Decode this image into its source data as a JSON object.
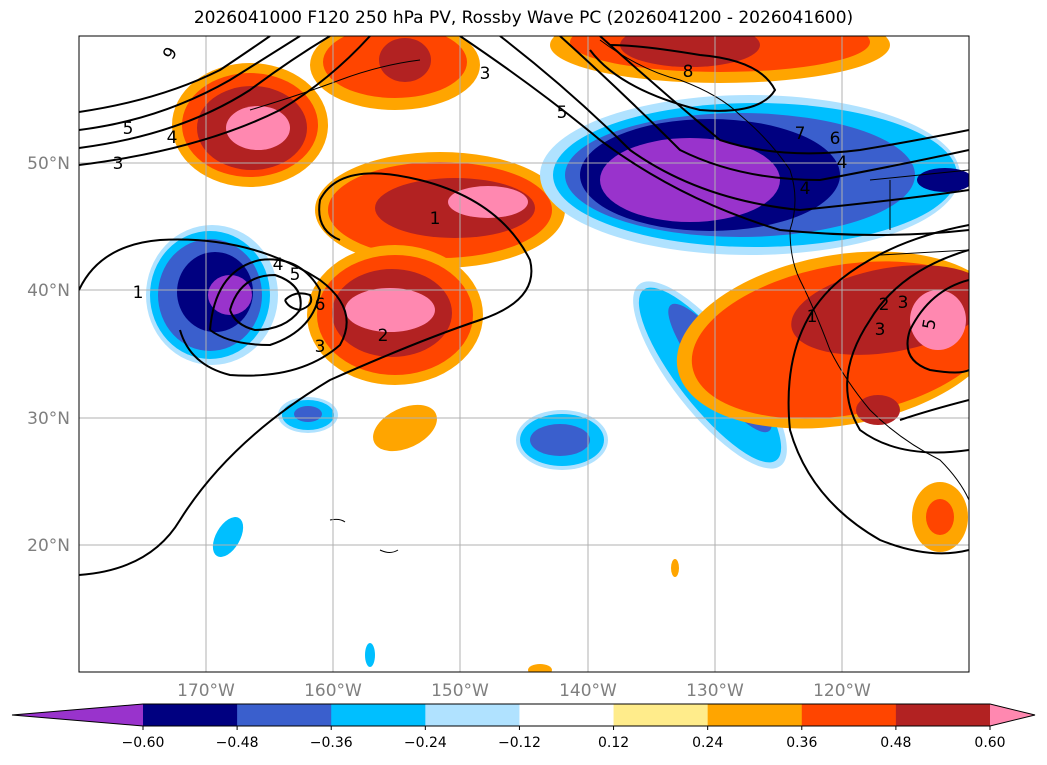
{
  "title": "2026041000 F120 250 hPa PV, Rossby Wave PC (2026041200 - 2026041600)",
  "lat_labels": [
    "50°N",
    "40°N",
    "30°N",
    "20°N"
  ],
  "lon_labels": [
    "170°W",
    "160°W",
    "150°W",
    "140°W",
    "130°W",
    "120°W"
  ],
  "contour_labels": [
    "9",
    "5",
    "4",
    "3",
    "3",
    "5",
    "1",
    "7",
    "6",
    "4",
    "4",
    "8",
    "1",
    "4",
    "5",
    "6",
    "3",
    "2",
    "1",
    "3",
    "2",
    "3",
    "5"
  ],
  "colorbar": {
    "tick_labels": [
      "−0.60",
      "−0.48",
      "−0.36",
      "−0.24",
      "−0.12",
      "0.12",
      "0.24",
      "0.36",
      "0.48",
      "0.60"
    ],
    "colors": [
      "#9933cc",
      "#000080",
      "#3a5fcd",
      "#00bfff",
      "#b0e2ff",
      "#ffffff",
      "#ffec8b",
      "#ffa500",
      "#ff4500",
      "#b22222",
      "#ff88b0"
    ]
  }
}
